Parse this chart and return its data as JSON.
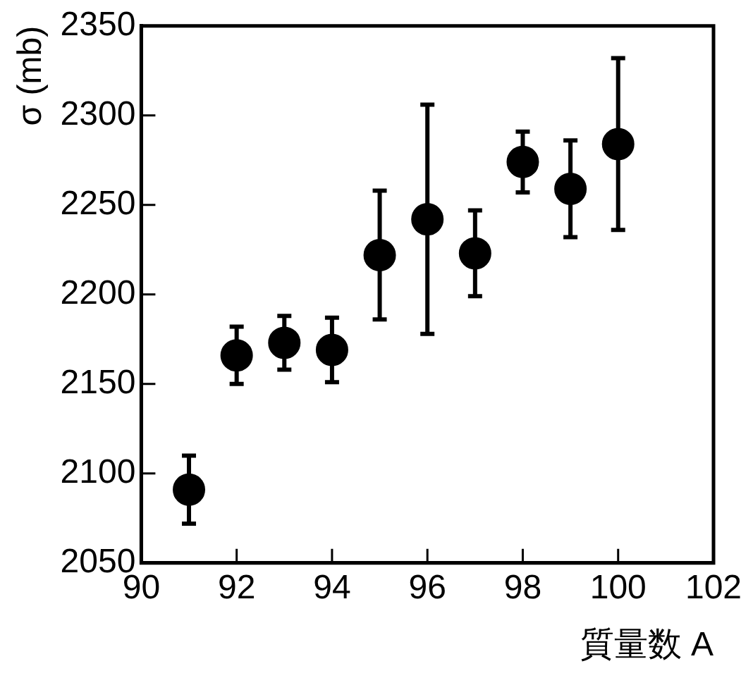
{
  "chart_data": {
    "type": "scatter",
    "xlabel": "質量数 A",
    "ylabel": "σ (mb)",
    "x": [
      91,
      92,
      93,
      94,
      95,
      96,
      97,
      98,
      99,
      100
    ],
    "values": [
      2091,
      2166,
      2173,
      2169,
      2222,
      2242,
      2223,
      2274,
      2259,
      2284
    ],
    "errors": [
      19,
      16,
      15,
      18,
      36,
      64,
      24,
      17,
      27,
      48
    ],
    "color": "#000000",
    "marker": "circle",
    "xlim": [
      90,
      102
    ],
    "xticks": [
      90,
      92,
      94,
      96,
      98,
      100,
      102
    ],
    "ylim": [
      2050,
      2350
    ],
    "yticks": [
      2050,
      2100,
      2150,
      2200,
      2250,
      2300,
      2350
    ],
    "grid": false,
    "legend": false
  }
}
